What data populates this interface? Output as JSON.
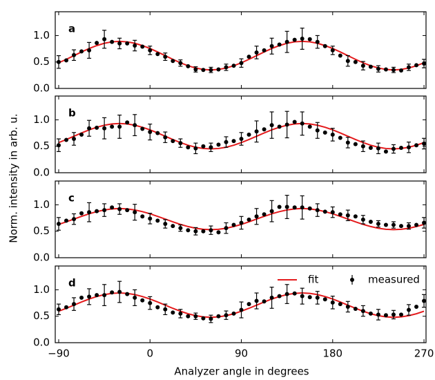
{
  "xlabel": "Analyzer angle in degrees",
  "ylabel": "Norm. intensity in arb. u.",
  "chart_data": {
    "type": "scatter",
    "x": [
      -90,
      -82.5,
      -75,
      -67.5,
      -60,
      -52.5,
      -45,
      -37.5,
      -30,
      -22.5,
      -15,
      -7.5,
      0,
      7.5,
      15,
      22.5,
      30,
      37.5,
      45,
      52.5,
      60,
      67.5,
      75,
      82.5,
      90,
      97.5,
      105,
      112.5,
      120,
      127.5,
      135,
      142.5,
      150,
      157.5,
      165,
      172.5,
      180,
      187.5,
      195,
      202.5,
      210,
      217.5,
      225,
      232.5,
      240,
      247.5,
      255,
      262.5,
      270
    ],
    "xlim": [
      -93.4,
      272
    ],
    "xticks": [
      {
        "value": -90,
        "label": "−90"
      },
      0,
      90,
      180,
      270
    ],
    "panels": [
      {
        "label": "a",
        "ylim": [
          0,
          1.45
        ],
        "yticks": [
          {
            "value": 0,
            "label": "0.0"
          },
          {
            "value": 0.5,
            "label": "0.5"
          },
          {
            "value": 1,
            "label": "1.0"
          }
        ],
        "series": [
          {
            "name": "fit",
            "color": "#e41a1c",
            "values": [
              0.485,
              0.55,
              0.62,
              0.69,
              0.755,
              0.81,
              0.854,
              0.881,
              0.89,
              0.881,
              0.854,
              0.81,
              0.755,
              0.69,
              0.62,
              0.55,
              0.485,
              0.429,
              0.386,
              0.359,
              0.35,
              0.359,
              0.386,
              0.429,
              0.485,
              0.55,
              0.62,
              0.69,
              0.755,
              0.81,
              0.854,
              0.881,
              0.89,
              0.881,
              0.854,
              0.81,
              0.755,
              0.69,
              0.62,
              0.55,
              0.485,
              0.429,
              0.386,
              0.359,
              0.35,
              0.359,
              0.386,
              0.429,
              0.485
            ]
          },
          {
            "name": "measured",
            "color": "#000000",
            "values": [
              0.5,
              0.53,
              0.63,
              0.7,
              0.72,
              0.86,
              0.93,
              0.88,
              0.85,
              0.85,
              0.81,
              0.79,
              0.72,
              0.65,
              0.6,
              0.52,
              0.48,
              0.42,
              0.36,
              0.35,
              0.35,
              0.36,
              0.4,
              0.43,
              0.48,
              0.6,
              0.68,
              0.72,
              0.8,
              0.83,
              0.88,
              0.92,
              0.94,
              0.93,
              0.88,
              0.8,
              0.72,
              0.62,
              0.52,
              0.5,
              0.43,
              0.41,
              0.37,
              0.36,
              0.35,
              0.34,
              0.4,
              0.44,
              0.47
            ],
            "errors": [
              0.12,
              null,
              0.1,
              null,
              0.15,
              null,
              0.17,
              null,
              0.1,
              null,
              0.1,
              null,
              0.08,
              null,
              0.07,
              null,
              0.06,
              null,
              0.05,
              null,
              0.05,
              null,
              0.06,
              null,
              0.08,
              null,
              0.12,
              null,
              0.15,
              null,
              0.2,
              null,
              0.2,
              null,
              0.12,
              null,
              0.08,
              null,
              0.1,
              null,
              0.08,
              null,
              0.06,
              null,
              0.05,
              null,
              0.06,
              null,
              0.08
            ]
          }
        ]
      },
      {
        "label": "b",
        "ylim": [
          0,
          1.45
        ],
        "yticks": [
          {
            "value": 0,
            "label": "0.0"
          },
          {
            "value": 0.5,
            "label": "0.5"
          },
          {
            "value": 1,
            "label": "1.0"
          }
        ],
        "series": [
          {
            "name": "fit",
            "color": "#e41a1c",
            "values": [
              0.57,
              0.628,
              0.69,
              0.752,
              0.81,
              0.86,
              0.898,
              0.922,
              0.93,
              0.922,
              0.898,
              0.86,
              0.81,
              0.752,
              0.69,
              0.628,
              0.57,
              0.52,
              0.482,
              0.458,
              0.45,
              0.458,
              0.482,
              0.52,
              0.57,
              0.628,
              0.69,
              0.752,
              0.81,
              0.86,
              0.898,
              0.922,
              0.93,
              0.922,
              0.898,
              0.86,
              0.81,
              0.752,
              0.69,
              0.628,
              0.57,
              0.52,
              0.482,
              0.458,
              0.45,
              0.458,
              0.482,
              0.52,
              0.57
            ]
          },
          {
            "name": "measured",
            "color": "#000000",
            "values": [
              0.52,
              0.62,
              0.64,
              0.72,
              0.84,
              0.85,
              0.84,
              0.87,
              0.87,
              0.95,
              0.9,
              0.83,
              0.77,
              0.75,
              0.67,
              0.6,
              0.56,
              0.48,
              0.46,
              0.5,
              0.48,
              0.53,
              0.58,
              0.6,
              0.64,
              0.72,
              0.78,
              0.82,
              0.9,
              0.87,
              0.91,
              0.96,
              0.93,
              0.87,
              0.8,
              0.76,
              0.72,
              0.66,
              0.57,
              0.54,
              0.5,
              0.47,
              0.46,
              0.4,
              0.45,
              0.47,
              0.48,
              0.52,
              0.55
            ],
            "errors": [
              0.12,
              null,
              0.12,
              null,
              0.15,
              null,
              0.2,
              null,
              0.22,
              null,
              0.2,
              null,
              0.15,
              null,
              0.1,
              null,
              0.08,
              null,
              0.1,
              null,
              0.08,
              null,
              0.1,
              null,
              0.12,
              null,
              0.2,
              null,
              0.25,
              null,
              0.25,
              null,
              0.22,
              null,
              0.15,
              null,
              0.12,
              null,
              0.1,
              null,
              0.1,
              null,
              0.1,
              null,
              0.08,
              null,
              0.1,
              null,
              0.1
            ]
          }
        ]
      },
      {
        "label": "c",
        "ylim": [
          0,
          1.45
        ],
        "yticks": [
          {
            "value": 0,
            "label": "0.0"
          },
          {
            "value": 0.5,
            "label": "0.5"
          },
          {
            "value": 1,
            "label": "1.0"
          }
        ],
        "series": [
          {
            "name": "fit",
            "color": "#e41a1c",
            "values": [
              0.63,
              0.678,
              0.73,
              0.782,
              0.83,
              0.871,
              0.903,
              0.923,
              0.93,
              0.923,
              0.903,
              0.871,
              0.83,
              0.782,
              0.73,
              0.678,
              0.63,
              0.589,
              0.557,
              0.537,
              0.53,
              0.537,
              0.557,
              0.589,
              0.63,
              0.678,
              0.73,
              0.782,
              0.83,
              0.871,
              0.903,
              0.923,
              0.93,
              0.923,
              0.903,
              0.871,
              0.83,
              0.782,
              0.73,
              0.678,
              0.63,
              0.589,
              0.557,
              0.537,
              0.53,
              0.537,
              0.557,
              0.589,
              0.63
            ]
          },
          {
            "name": "measured",
            "color": "#000000",
            "values": [
              0.64,
              0.7,
              0.73,
              0.84,
              0.86,
              0.88,
              0.9,
              0.95,
              0.92,
              0.9,
              0.86,
              0.78,
              0.74,
              0.7,
              0.64,
              0.6,
              0.56,
              0.52,
              0.5,
              0.5,
              0.52,
              0.48,
              0.56,
              0.62,
              0.66,
              0.72,
              0.78,
              0.82,
              0.88,
              0.96,
              0.96,
              0.95,
              0.95,
              0.93,
              0.9,
              0.87,
              0.86,
              0.82,
              0.8,
              0.78,
              0.72,
              0.68,
              0.64,
              0.62,
              0.62,
              0.6,
              0.6,
              0.62,
              0.66
            ],
            "errors": [
              0.12,
              null,
              0.1,
              null,
              0.18,
              null,
              0.12,
              null,
              0.1,
              null,
              0.15,
              null,
              0.1,
              null,
              0.08,
              null,
              0.06,
              null,
              0.07,
              null,
              0.08,
              null,
              0.1,
              null,
              0.12,
              null,
              0.15,
              null,
              0.2,
              null,
              0.22,
              null,
              0.22,
              null,
              0.12,
              null,
              0.1,
              null,
              0.1,
              null,
              0.08,
              null,
              0.06,
              null,
              0.06,
              null,
              0.06,
              null,
              0.1
            ]
          }
        ]
      },
      {
        "label": "d",
        "ylim": [
          0,
          1.45
        ],
        "yticks": [
          {
            "value": 0,
            "label": "0.0"
          },
          {
            "value": 0.5,
            "label": "0.5"
          },
          {
            "value": 1,
            "label": "1.0"
          }
        ],
        "legend": "upper right",
        "series": [
          {
            "name": "fit",
            "color": "#e41a1c",
            "values": [
              0.595,
              0.65,
              0.71,
              0.77,
              0.825,
              0.873,
              0.909,
              0.932,
              0.94,
              0.932,
              0.909,
              0.873,
              0.825,
              0.77,
              0.71,
              0.65,
              0.595,
              0.547,
              0.511,
              0.488,
              0.48,
              0.488,
              0.511,
              0.547,
              0.595,
              0.65,
              0.71,
              0.77,
              0.825,
              0.873,
              0.909,
              0.932,
              0.94,
              0.932,
              0.909,
              0.873,
              0.825,
              0.77,
              0.71,
              0.65,
              0.595,
              0.547,
              0.511,
              0.488,
              0.48,
              0.488,
              0.511,
              0.547,
              0.595
            ]
          },
          {
            "name": "measured",
            "color": "#000000",
            "values": [
              0.63,
              0.67,
              0.73,
              0.85,
              0.87,
              0.9,
              0.9,
              0.95,
              0.96,
              0.92,
              0.85,
              0.8,
              0.75,
              0.67,
              0.63,
              0.57,
              0.55,
              0.5,
              0.5,
              0.46,
              0.45,
              0.5,
              0.52,
              0.55,
              0.62,
              0.73,
              0.79,
              0.78,
              0.85,
              0.88,
              0.92,
              0.93,
              0.88,
              0.86,
              0.85,
              0.82,
              0.76,
              0.73,
              0.68,
              0.64,
              0.6,
              0.55,
              0.53,
              0.52,
              0.53,
              0.53,
              0.62,
              0.68,
              0.79
            ],
            "errors": [
              0.1,
              null,
              0.12,
              null,
              0.15,
              null,
              0.2,
              null,
              0.2,
              null,
              0.15,
              null,
              0.12,
              null,
              0.1,
              null,
              0.08,
              null,
              0.06,
              null,
              0.07,
              null,
              0.08,
              null,
              0.15,
              null,
              0.15,
              null,
              0.2,
              null,
              0.18,
              null,
              0.15,
              null,
              0.12,
              null,
              0.12,
              null,
              0.1,
              null,
              0.1,
              null,
              0.1,
              null,
              0.08,
              null,
              0.1,
              null,
              0.12
            ]
          }
        ]
      }
    ]
  }
}
